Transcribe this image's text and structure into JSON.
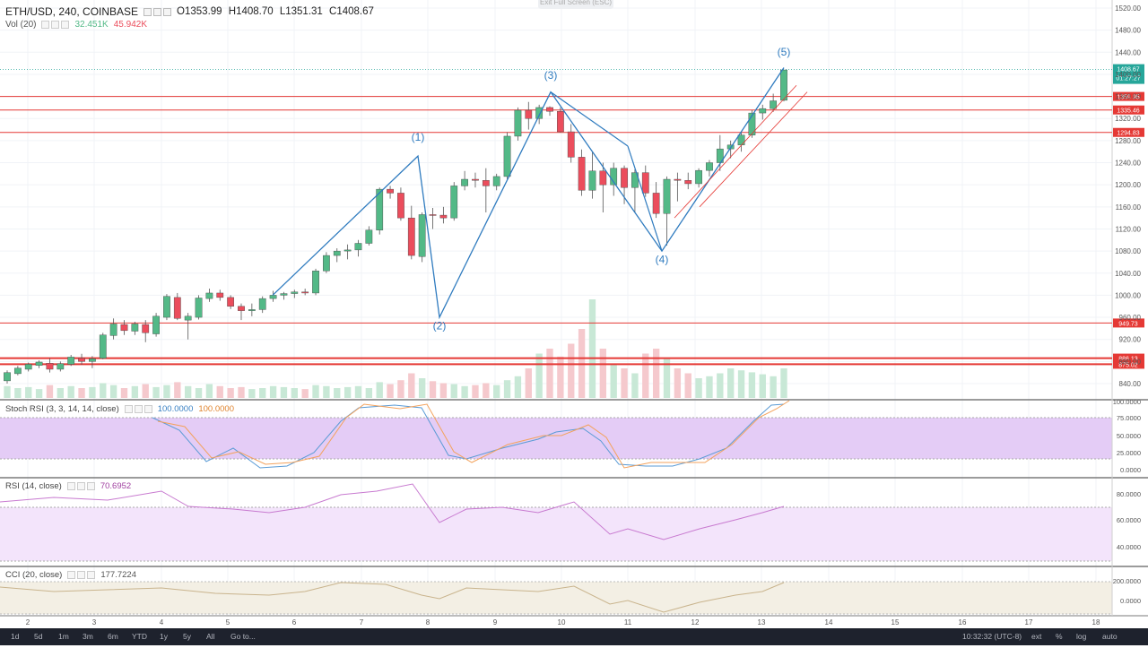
{
  "header": {
    "symbol": "ETH/USD, 240, COINBASE",
    "open": "O1353.99",
    "high": "H1408.70",
    "low": "L1351.31",
    "close": "C1408.67"
  },
  "volume": {
    "label": "Vol (20)",
    "value1": "32.451K",
    "value2": "45.942K"
  },
  "exit_fullscreen": "Exit Full Screen (ESC)",
  "stoch": {
    "label": "Stoch RSI (3, 3, 14, 14, close)",
    "value1": "100.0000",
    "value2": "100.0000",
    "ticks": [
      "100.0000",
      "75.0000",
      "50.0000",
      "25.0000",
      "0.0000"
    ]
  },
  "rsi": {
    "label": "RSI (14, close)",
    "value": "70.6952",
    "ticks": [
      "80.0000",
      "60.0000",
      "40.0000"
    ]
  },
  "cci": {
    "label": "CCI (20, close)",
    "value": "177.7224",
    "ticks": [
      "200.0000",
      "0.0000"
    ]
  },
  "price_axis": [
    "1520.00",
    "1480.00",
    "1440.00",
    "1400.00",
    "1360.00",
    "1320.00",
    "1280.00",
    "1240.00",
    "1200.00",
    "1160.00",
    "1120.00",
    "1080.00",
    "1040.00",
    "1000.00",
    "960.00",
    "920.00",
    "880.00",
    "840.00"
  ],
  "price_tags": [
    {
      "text": "1408.67",
      "sub": "01:27:27",
      "color": "#26a69a",
      "price": 1408.67
    },
    {
      "text": "1359.95",
      "color": "#e53935",
      "price": 1359.95
    },
    {
      "text": "1335.46",
      "color": "#e53935",
      "price": 1335.46
    },
    {
      "text": "1294.83",
      "color": "#e53935",
      "price": 1294.83
    },
    {
      "text": "949.73",
      "color": "#e53935",
      "price": 949.73
    },
    {
      "text": "886.13",
      "color": "#e53935",
      "price": 886.13
    },
    {
      "text": "875.02",
      "color": "#e53935",
      "price": 875.02
    }
  ],
  "date_axis": [
    "2",
    "3",
    "4",
    "5",
    "6",
    "7",
    "8",
    "9",
    "10",
    "11",
    "12",
    "13",
    "14",
    "15",
    "16",
    "17",
    "18"
  ],
  "wave_labels": [
    "(1)",
    "(2)",
    "(3)",
    "(4)",
    "(5)"
  ],
  "time_ranges": [
    "1d",
    "5d",
    "1m",
    "3m",
    "6m",
    "YTD",
    "1y",
    "5y",
    "All"
  ],
  "goto": "Go to...",
  "clock": "10:32:32 (UTC-8)",
  "bottom_right": [
    "ext",
    "%",
    "log",
    "auto"
  ],
  "colors": {
    "up": "#53b987",
    "down": "#eb4d5c",
    "wave": "#2f7bbf",
    "hline": "#e53935",
    "stoch_band": "#e1c6f5",
    "rsi_band": "#f3e4fb"
  },
  "candles": [
    [
      845,
      864,
      840,
      860
    ],
    [
      858,
      872,
      855,
      868
    ],
    [
      866,
      878,
      862,
      875
    ],
    [
      873,
      882,
      868,
      879
    ],
    [
      877,
      886,
      860,
      866
    ],
    [
      866,
      880,
      862,
      876
    ],
    [
      875,
      892,
      872,
      888
    ],
    [
      886,
      894,
      874,
      880
    ],
    [
      880,
      890,
      868,
      885
    ],
    [
      886,
      932,
      884,
      928
    ],
    [
      927,
      958,
      920,
      948
    ],
    [
      947,
      955,
      928,
      936
    ],
    [
      935,
      952,
      928,
      948
    ],
    [
      947,
      955,
      915,
      932
    ],
    [
      930,
      968,
      925,
      962
    ],
    [
      960,
      1002,
      955,
      998
    ],
    [
      996,
      1004,
      955,
      958
    ],
    [
      955,
      968,
      920,
      962
    ],
    [
      960,
      1000,
      956,
      995
    ],
    [
      994,
      1012,
      988,
      1004
    ],
    [
      1004,
      1010,
      990,
      996
    ],
    [
      996,
      1000,
      975,
      980
    ],
    [
      980,
      985,
      955,
      972
    ],
    [
      972,
      985,
      962,
      974
    ],
    [
      974,
      998,
      968,
      994
    ],
    [
      994,
      1008,
      988,
      1000
    ],
    [
      1000,
      1006,
      992,
      1003
    ],
    [
      1003,
      1010,
      995,
      1006
    ],
    [
      1006,
      1012,
      1000,
      1004
    ],
    [
      1004,
      1048,
      1000,
      1044
    ],
    [
      1044,
      1078,
      1040,
      1072
    ],
    [
      1072,
      1085,
      1060,
      1080
    ],
    [
      1080,
      1092,
      1065,
      1082
    ],
    [
      1082,
      1100,
      1070,
      1094
    ],
    [
      1094,
      1125,
      1090,
      1118
    ],
    [
      1118,
      1195,
      1110,
      1192
    ],
    [
      1192,
      1198,
      1175,
      1185
    ],
    [
      1185,
      1195,
      1135,
      1140
    ],
    [
      1140,
      1162,
      1065,
      1072
    ],
    [
      1070,
      1150,
      1060,
      1146
    ],
    [
      1146,
      1158,
      1120,
      1145
    ],
    [
      1145,
      1160,
      1130,
      1140
    ],
    [
      1140,
      1205,
      1135,
      1198
    ],
    [
      1198,
      1225,
      1190,
      1210
    ],
    [
      1210,
      1222,
      1195,
      1208
    ],
    [
      1208,
      1230,
      1150,
      1198
    ],
    [
      1198,
      1220,
      1190,
      1215
    ],
    [
      1215,
      1295,
      1210,
      1288
    ],
    [
      1288,
      1340,
      1280,
      1335
    ],
    [
      1335,
      1350,
      1300,
      1320
    ],
    [
      1320,
      1345,
      1310,
      1340
    ],
    [
      1340,
      1342,
      1325,
      1333
    ],
    [
      1333,
      1340,
      1295,
      1296
    ],
    [
      1296,
      1310,
      1240,
      1250
    ],
    [
      1250,
      1264,
      1180,
      1190
    ],
    [
      1190,
      1260,
      1175,
      1225
    ],
    [
      1225,
      1240,
      1150,
      1200
    ],
    [
      1200,
      1240,
      1180,
      1230
    ],
    [
      1230,
      1235,
      1165,
      1195
    ],
    [
      1195,
      1228,
      1150,
      1222
    ],
    [
      1222,
      1235,
      1178,
      1185
    ],
    [
      1185,
      1205,
      1140,
      1148
    ],
    [
      1148,
      1215,
      1090,
      1210
    ],
    [
      1210,
      1222,
      1170,
      1208
    ],
    [
      1208,
      1222,
      1192,
      1202
    ],
    [
      1202,
      1230,
      1195,
      1226
    ],
    [
      1226,
      1245,
      1215,
      1240
    ],
    [
      1240,
      1290,
      1225,
      1265
    ],
    [
      1265,
      1280,
      1248,
      1272
    ],
    [
      1272,
      1295,
      1260,
      1290
    ],
    [
      1290,
      1335,
      1285,
      1330
    ],
    [
      1330,
      1345,
      1318,
      1338
    ],
    [
      1338,
      1365,
      1332,
      1352
    ],
    [
      1353,
      1408,
      1351,
      1408
    ]
  ],
  "volumes": [
    0.12,
    0.1,
    0.11,
    0.09,
    0.13,
    0.1,
    0.12,
    0.1,
    0.11,
    0.15,
    0.13,
    0.1,
    0.12,
    0.14,
    0.11,
    0.13,
    0.16,
    0.12,
    0.1,
    0.14,
    0.12,
    0.1,
    0.11,
    0.09,
    0.1,
    0.12,
    0.11,
    0.1,
    0.09,
    0.13,
    0.12,
    0.1,
    0.11,
    0.12,
    0.1,
    0.16,
    0.14,
    0.18,
    0.25,
    0.2,
    0.17,
    0.15,
    0.14,
    0.12,
    0.13,
    0.15,
    0.13,
    0.18,
    0.22,
    0.3,
    0.45,
    0.5,
    0.42,
    0.55,
    0.7,
    1.0,
    0.5,
    0.35,
    0.3,
    0.25,
    0.45,
    0.5,
    0.4,
    0.3,
    0.25,
    0.2,
    0.22,
    0.25,
    0.3,
    0.28,
    0.26,
    0.24,
    0.22,
    0.3
  ]
}
